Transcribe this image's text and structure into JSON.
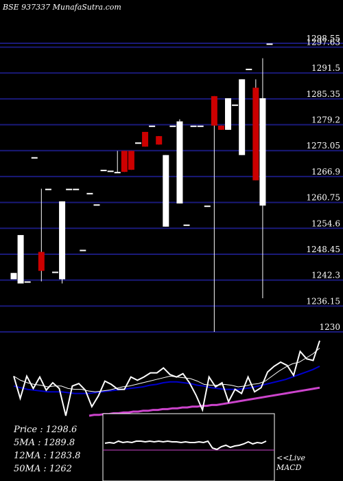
{
  "header": {
    "title": "BSE 937337 MunafaSutra.com"
  },
  "colors": {
    "background": "#000000",
    "gridline": "#1a1a7a",
    "bullish": "#ffffff",
    "bearish": "#cc0000",
    "ma_short": "#ffffff",
    "ma_mid": "#0000cc",
    "ma_long": "#cc44cc",
    "macd_line": "#ffffff",
    "macd_signal": "#cc44cc"
  },
  "stats": {
    "price_line": "Price   :  1298.6",
    "ma5_line": "5MA  :  1289.8",
    "ma12_line": "12MA  :  1283.8",
    "ma50_line": "50MA  :  1262"
  },
  "macd_label": {
    "line1": "<<Live",
    "line2": "MACD"
  },
  "chart_data": {
    "type": "candlestick",
    "price_axis": {
      "ticks": [
        1298.55,
        1297.63,
        1291.5,
        1285.35,
        1279.2,
        1273.05,
        1266.9,
        1260.75,
        1254.6,
        1248.45,
        1242.3,
        1236.15,
        1230
      ],
      "ylim": [
        1230,
        1299.5
      ],
      "grid": true,
      "position": "right"
    },
    "candles": [
      {
        "o": 1242.5,
        "h": 1244,
        "l": 1242.5,
        "c": 1244
      },
      {
        "o": 1241.5,
        "h": 1253,
        "l": 1241.5,
        "c": 1253
      },
      {
        "o": 1242,
        "h": 1242,
        "l": 1242,
        "c": 1242
      },
      {
        "o": 1271.5,
        "h": 1271.5,
        "l": 1271.5,
        "c": 1271.5
      },
      {
        "o": 1249,
        "h": 1264,
        "l": 1242,
        "c": 1244.5
      },
      {
        "o": 1264,
        "h": 1264,
        "l": 1264,
        "c": 1264
      },
      {
        "o": 1244.3,
        "h": 1244.3,
        "l": 1244.3,
        "c": 1244.3
      },
      {
        "o": 1242.5,
        "h": 1261,
        "l": 1241.5,
        "c": 1261
      },
      {
        "o": 1264,
        "h": 1264,
        "l": 1264,
        "c": 1264
      },
      {
        "o": 1264,
        "h": 1264,
        "l": 1264,
        "c": 1264
      },
      {
        "o": 1249.5,
        "h": 1249.5,
        "l": 1249.5,
        "c": 1249.5
      },
      {
        "o": 1263,
        "h": 1263,
        "l": 1263,
        "c": 1263
      },
      {
        "o": 1260.3,
        "h": 1260.3,
        "l": 1260.3,
        "c": 1260.3
      },
      {
        "o": 1268.5,
        "h": 1268.5,
        "l": 1268.5,
        "c": 1268.5
      },
      {
        "o": 1268.3,
        "h": 1268.3,
        "l": 1268.3,
        "c": 1268.3
      },
      {
        "o": 1268,
        "h": 1273,
        "l": 1268,
        "c": 1268
      },
      {
        "o": 1273,
        "h": 1273,
        "l": 1268,
        "c": 1268
      },
      {
        "o": 1273,
        "h": 1273,
        "l": 1268.5,
        "c": 1268.5
      },
      {
        "o": 1275,
        "h": 1275,
        "l": 1275,
        "c": 1275
      },
      {
        "o": 1277.5,
        "h": 1277.5,
        "l": 1274,
        "c": 1274
      },
      {
        "o": 1279,
        "h": 1279,
        "l": 1279,
        "c": 1279
      },
      {
        "o": 1276.5,
        "h": 1276.5,
        "l": 1274.5,
        "c": 1274.5
      },
      {
        "o": 1255,
        "h": 1272,
        "l": 1255,
        "c": 1272
      },
      {
        "o": 1279,
        "h": 1279,
        "l": 1279,
        "c": 1279
      },
      {
        "o": 1260.5,
        "h": 1280.5,
        "l": 1260.5,
        "c": 1280
      },
      {
        "o": 1255.5,
        "h": 1255.5,
        "l": 1255.5,
        "c": 1255.5
      },
      {
        "o": 1279,
        "h": 1279,
        "l": 1279,
        "c": 1279
      },
      {
        "o": 1279,
        "h": 1279,
        "l": 1279,
        "c": 1279
      },
      {
        "o": 1260,
        "h": 1260,
        "l": 1260,
        "c": 1260
      },
      {
        "o": 1286,
        "h": 1286,
        "l": 1230,
        "c": 1279
      },
      {
        "o": 1279,
        "h": 1279,
        "l": 1278,
        "c": 1278
      },
      {
        "o": 1278,
        "h": 1285.5,
        "l": 1278,
        "c": 1285.5
      },
      {
        "o": 1284,
        "h": 1284,
        "l": 1284,
        "c": 1284
      },
      {
        "o": 1272,
        "h": 1290,
        "l": 1272,
        "c": 1290
      },
      {
        "o": 1292.5,
        "h": 1292.5,
        "l": 1292.5,
        "c": 1292.5
      },
      {
        "o": 1288,
        "h": 1290,
        "l": 1266,
        "c": 1266
      },
      {
        "o": 1260,
        "h": 1295,
        "l": 1238,
        "c": 1285.5
      },
      {
        "o": 1298.5,
        "h": 1298.5,
        "l": 1298.5,
        "c": 1298.5
      }
    ],
    "indicator_lines": {
      "price": [
        48,
        21,
        48,
        33,
        47,
        31,
        40,
        33,
        0,
        36,
        39,
        31,
        11,
        24,
        42,
        38,
        32,
        32,
        47,
        43,
        47,
        52,
        52,
        58,
        50,
        47,
        51,
        40,
        25,
        7,
        47,
        35,
        40,
        17,
        32,
        27,
        47,
        29,
        34,
        53,
        60,
        65,
        61,
        49,
        78,
        69,
        67,
        91
      ],
      "ma5": [
        48,
        43,
        40,
        38,
        37,
        35,
        36,
        36,
        33,
        32,
        32,
        30,
        29,
        30,
        31,
        33,
        35,
        36,
        38,
        40,
        42,
        44,
        46,
        48,
        47,
        46,
        45,
        42,
        38,
        37,
        37,
        38,
        37,
        35,
        36,
        38,
        39,
        42,
        48,
        54,
        59,
        63,
        65,
        70,
        75,
        82
      ],
      "ma12": [
        36,
        34,
        32,
        31,
        30,
        29,
        29,
        29,
        28,
        27,
        27,
        27,
        28,
        29,
        30,
        31,
        32,
        33,
        34,
        35,
        37,
        38,
        40,
        41,
        41,
        40,
        39,
        37,
        36,
        34,
        33,
        32,
        32,
        32,
        33,
        34,
        36,
        38,
        40,
        42,
        44,
        47,
        50,
        53,
        56,
        60
      ],
      "ma50": [
        0,
        1,
        1,
        2,
        2,
        3,
        3,
        4,
        4,
        5,
        5,
        6,
        6,
        7,
        7,
        8,
        8,
        9,
        9,
        10,
        10,
        11,
        11,
        12,
        12,
        13,
        13,
        14,
        15,
        16,
        17,
        18,
        19,
        20,
        21,
        22,
        23,
        24,
        25,
        26,
        27,
        28,
        29,
        30,
        31,
        32,
        33,
        34
      ]
    },
    "macd": {
      "line": [
        45,
        46,
        45,
        48,
        46,
        47,
        46,
        48,
        48,
        47,
        48,
        47,
        48,
        47,
        48,
        47,
        47,
        46,
        47,
        46,
        46,
        47,
        46,
        48,
        38,
        36,
        40,
        42,
        39,
        41,
        42,
        44,
        47,
        44,
        46,
        45,
        48
      ],
      "signal": 35
    }
  }
}
